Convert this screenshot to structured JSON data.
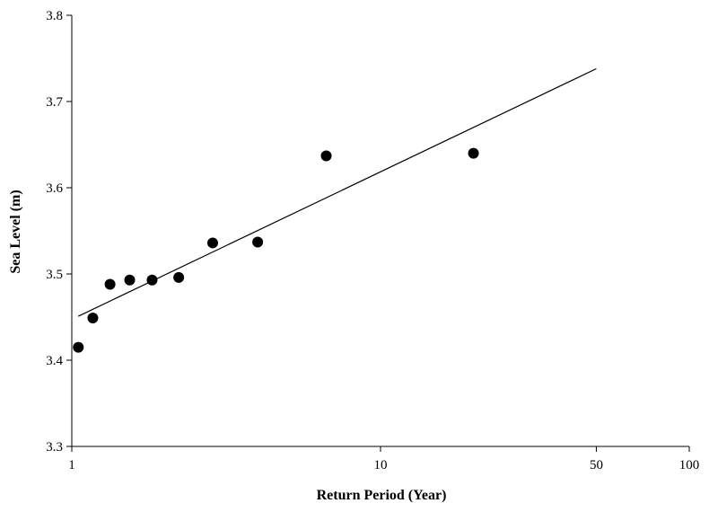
{
  "chart_data": {
    "type": "scatter",
    "xlabel": "Return Period (Year)",
    "ylabel": "Sea Level (m)",
    "x_scale": "log",
    "xlim": [
      1,
      100
    ],
    "ylim": [
      3.3,
      3.8
    ],
    "x_ticks": [
      1,
      10,
      50,
      100
    ],
    "x_tick_labels": [
      "1",
      "10",
      "50",
      "100"
    ],
    "y_ticks": [
      3.3,
      3.4,
      3.5,
      3.6,
      3.7,
      3.8
    ],
    "y_tick_labels": [
      "3.3",
      "3.4",
      "3.5",
      "3.6",
      "3.7",
      "3.8"
    ],
    "grid": false,
    "legend": "none",
    "points": [
      {
        "x": 1.05,
        "y": 3.415
      },
      {
        "x": 1.17,
        "y": 3.449
      },
      {
        "x": 1.33,
        "y": 3.488
      },
      {
        "x": 1.54,
        "y": 3.493
      },
      {
        "x": 1.82,
        "y": 3.493
      },
      {
        "x": 2.22,
        "y": 3.496
      },
      {
        "x": 2.86,
        "y": 3.536
      },
      {
        "x": 4.0,
        "y": 3.537
      },
      {
        "x": 6.67,
        "y": 3.637
      },
      {
        "x": 20.0,
        "y": 3.64
      }
    ],
    "trendline": {
      "x": [
        1.05,
        50
      ],
      "y": [
        3.451,
        3.738
      ]
    },
    "colors": {
      "marker": "#000000",
      "line": "#000000",
      "axis": "#000000"
    }
  }
}
